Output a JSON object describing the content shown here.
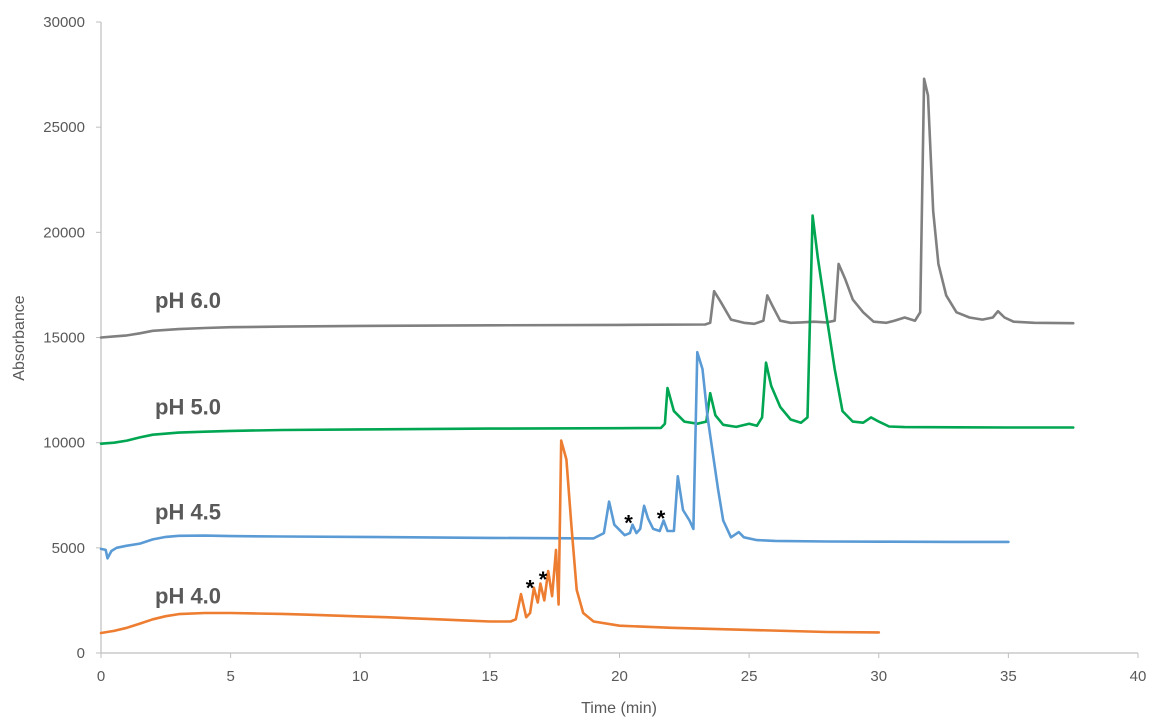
{
  "chart_data": {
    "type": "line",
    "title": "",
    "xlabel": "Time (min)",
    "ylabel": "Absorbance",
    "xlim": [
      0,
      40
    ],
    "ylim": [
      0,
      30000
    ],
    "x_ticks": [
      0,
      5,
      10,
      15,
      20,
      25,
      30,
      35,
      40
    ],
    "y_ticks": [
      0,
      5000,
      10000,
      15000,
      20000,
      25000,
      30000
    ],
    "grid": false,
    "legend": "none",
    "series": [
      {
        "label": "pH 6.0",
        "color": "#808080",
        "points": [
          [
            0,
            15000
          ],
          [
            0.5,
            15050
          ],
          [
            1,
            15100
          ],
          [
            1.5,
            15200
          ],
          [
            2,
            15320
          ],
          [
            3,
            15400
          ],
          [
            4,
            15450
          ],
          [
            5,
            15490
          ],
          [
            7,
            15520
          ],
          [
            10,
            15550
          ],
          [
            15,
            15580
          ],
          [
            20,
            15600
          ],
          [
            23.3,
            15620
          ],
          [
            23.5,
            15700
          ],
          [
            23.65,
            17200
          ],
          [
            23.9,
            16700
          ],
          [
            24.3,
            15850
          ],
          [
            24.8,
            15700
          ],
          [
            25.2,
            15650
          ],
          [
            25.55,
            15800
          ],
          [
            25.7,
            17000
          ],
          [
            25.9,
            16500
          ],
          [
            26.2,
            15800
          ],
          [
            26.6,
            15700
          ],
          [
            27,
            15720
          ],
          [
            27.5,
            15750
          ],
          [
            28,
            15720
          ],
          [
            28.3,
            15800
          ],
          [
            28.45,
            18500
          ],
          [
            28.7,
            17800
          ],
          [
            29,
            16800
          ],
          [
            29.4,
            16200
          ],
          [
            29.8,
            15750
          ],
          [
            30.3,
            15700
          ],
          [
            30.6,
            15800
          ],
          [
            31,
            15950
          ],
          [
            31.4,
            15800
          ],
          [
            31.6,
            16200
          ],
          [
            31.75,
            27300
          ],
          [
            31.9,
            26500
          ],
          [
            32.1,
            21000
          ],
          [
            32.3,
            18500
          ],
          [
            32.6,
            17000
          ],
          [
            33,
            16200
          ],
          [
            33.5,
            15950
          ],
          [
            34,
            15850
          ],
          [
            34.4,
            15950
          ],
          [
            34.6,
            16250
          ],
          [
            34.85,
            15950
          ],
          [
            35.2,
            15750
          ],
          [
            36,
            15700
          ],
          [
            37.5,
            15680
          ]
        ]
      },
      {
        "label": "pH 5.0",
        "color": "#00A651",
        "points": [
          [
            0,
            9950
          ],
          [
            0.5,
            10000
          ],
          [
            1,
            10100
          ],
          [
            1.5,
            10250
          ],
          [
            2,
            10380
          ],
          [
            3,
            10480
          ],
          [
            4,
            10520
          ],
          [
            5,
            10560
          ],
          [
            7,
            10600
          ],
          [
            10,
            10630
          ],
          [
            15,
            10670
          ],
          [
            20,
            10690
          ],
          [
            21.6,
            10700
          ],
          [
            21.75,
            10900
          ],
          [
            21.85,
            12600
          ],
          [
            22.1,
            11500
          ],
          [
            22.5,
            11000
          ],
          [
            23,
            10900
          ],
          [
            23.35,
            11000
          ],
          [
            23.5,
            12350
          ],
          [
            23.7,
            11300
          ],
          [
            24,
            10850
          ],
          [
            24.5,
            10750
          ],
          [
            25,
            10900
          ],
          [
            25.3,
            10800
          ],
          [
            25.5,
            11200
          ],
          [
            25.65,
            13800
          ],
          [
            25.85,
            12700
          ],
          [
            26.2,
            11700
          ],
          [
            26.6,
            11100
          ],
          [
            27,
            10950
          ],
          [
            27.25,
            11200
          ],
          [
            27.45,
            20800
          ],
          [
            27.65,
            18800
          ],
          [
            27.95,
            16300
          ],
          [
            28.3,
            13500
          ],
          [
            28.6,
            11500
          ],
          [
            29,
            11000
          ],
          [
            29.4,
            10950
          ],
          [
            29.7,
            11200
          ],
          [
            30,
            11000
          ],
          [
            30.4,
            10770
          ],
          [
            31,
            10740
          ],
          [
            33,
            10730
          ],
          [
            35,
            10720
          ],
          [
            37.5,
            10720
          ]
        ]
      },
      {
        "label": "pH 4.5",
        "color": "#5B9BD5",
        "points": [
          [
            0,
            4950
          ],
          [
            0.18,
            4900
          ],
          [
            0.25,
            4500
          ],
          [
            0.4,
            4850
          ],
          [
            0.6,
            5000
          ],
          [
            1,
            5100
          ],
          [
            1.5,
            5200
          ],
          [
            2,
            5400
          ],
          [
            2.5,
            5520
          ],
          [
            3,
            5570
          ],
          [
            4,
            5580
          ],
          [
            5,
            5560
          ],
          [
            7,
            5540
          ],
          [
            10,
            5520
          ],
          [
            15,
            5470
          ],
          [
            19,
            5450
          ],
          [
            19.4,
            5700
          ],
          [
            19.6,
            7200
          ],
          [
            19.8,
            6100
          ],
          [
            20.2,
            5600
          ],
          [
            20.4,
            5700
          ],
          [
            20.5,
            6100
          ],
          [
            20.65,
            5700
          ],
          [
            20.8,
            5900
          ],
          [
            20.95,
            7000
          ],
          [
            21.1,
            6400
          ],
          [
            21.3,
            5900
          ],
          [
            21.55,
            5800
          ],
          [
            21.7,
            6300
          ],
          [
            21.85,
            5800
          ],
          [
            22.1,
            5800
          ],
          [
            22.25,
            8400
          ],
          [
            22.45,
            6800
          ],
          [
            22.7,
            6300
          ],
          [
            22.85,
            5900
          ],
          [
            23,
            14300
          ],
          [
            23.2,
            13500
          ],
          [
            23.4,
            11200
          ],
          [
            23.6,
            9500
          ],
          [
            23.8,
            7800
          ],
          [
            24,
            6300
          ],
          [
            24.3,
            5500
          ],
          [
            24.6,
            5750
          ],
          [
            24.8,
            5500
          ],
          [
            25.3,
            5370
          ],
          [
            26,
            5330
          ],
          [
            28,
            5300
          ],
          [
            30,
            5290
          ],
          [
            33,
            5280
          ],
          [
            35,
            5280
          ]
        ]
      },
      {
        "label": "pH 4.0",
        "color": "#ED7D31",
        "points": [
          [
            0,
            950
          ],
          [
            0.5,
            1050
          ],
          [
            1,
            1200
          ],
          [
            1.5,
            1400
          ],
          [
            2,
            1600
          ],
          [
            2.5,
            1750
          ],
          [
            3,
            1850
          ],
          [
            4,
            1900
          ],
          [
            5,
            1900
          ],
          [
            6,
            1880
          ],
          [
            7,
            1860
          ],
          [
            8,
            1820
          ],
          [
            9,
            1780
          ],
          [
            10,
            1740
          ],
          [
            11,
            1700
          ],
          [
            12,
            1650
          ],
          [
            13,
            1600
          ],
          [
            14,
            1550
          ],
          [
            15,
            1500
          ],
          [
            15.8,
            1500
          ],
          [
            16,
            1600
          ],
          [
            16.2,
            2800
          ],
          [
            16.4,
            1700
          ],
          [
            16.55,
            1900
          ],
          [
            16.7,
            3100
          ],
          [
            16.85,
            2400
          ],
          [
            16.95,
            3300
          ],
          [
            17.1,
            2500
          ],
          [
            17.25,
            3900
          ],
          [
            17.4,
            2700
          ],
          [
            17.55,
            4900
          ],
          [
            17.65,
            2300
          ],
          [
            17.75,
            10100
          ],
          [
            17.95,
            9200
          ],
          [
            18.15,
            6000
          ],
          [
            18.35,
            3000
          ],
          [
            18.6,
            1900
          ],
          [
            19,
            1500
          ],
          [
            20,
            1300
          ],
          [
            22,
            1200
          ],
          [
            25,
            1100
          ],
          [
            28,
            1000
          ],
          [
            30,
            980
          ]
        ]
      }
    ],
    "annotations": [
      {
        "text": "*",
        "x": 16.55,
        "y": 3300
      },
      {
        "text": "*",
        "x": 17.05,
        "y": 3700
      },
      {
        "text": "*",
        "x": 20.35,
        "y": 6400
      },
      {
        "text": "*",
        "x": 21.6,
        "y": 6600
      }
    ]
  }
}
